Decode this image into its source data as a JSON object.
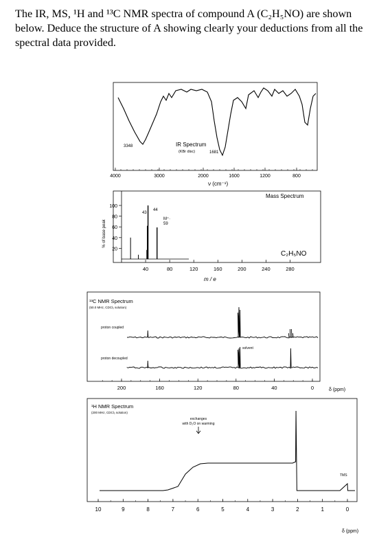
{
  "question": {
    "line1": "The IR, MS, ¹H and ¹³C NMR spectra of compound A (C₂H₅NO) are shown",
    "line2": "below. Deduce the structure of A showing clearly your deductions from all the",
    "line3": "spectral data provided."
  },
  "ir": {
    "title": "IR Spectrum",
    "subtitle": "(KBr disc)",
    "peak_labels": [
      "3348",
      "1681"
    ],
    "x_ticks": [
      "4000",
      "3000",
      "2000",
      "1600",
      "1200",
      "800"
    ],
    "xlabel": "ν (cm⁻¹)"
  },
  "ms": {
    "title": "Mass Spectrum",
    "formula": "C₂H₅NO",
    "y_ticks": [
      "100",
      "80",
      "60",
      "40",
      "20"
    ],
    "ylabel": "% of base peak",
    "peak_labels": [
      "43",
      "44",
      "M⁺·",
      "59"
    ],
    "x_ticks": [
      "40",
      "80",
      "120",
      "160",
      "200",
      "240",
      "280"
    ],
    "xlabel": "m / e"
  },
  "c13": {
    "title": "¹³C NMR Spectrum",
    "subtitle": "(50.0 MHz, CDCl₃ solution)",
    "trace1_label": "proton coupled",
    "trace2_label": "proton decoupled",
    "solvent_label": "solvent",
    "x_ticks": [
      "200",
      "160",
      "120",
      "80",
      "40",
      "0"
    ],
    "xunit": "δ (ppm)"
  },
  "h1": {
    "title": "¹H NMR Spectrum",
    "subtitle": "(200 MHz, CDCl₃ solution)",
    "annotation_line1": "exchanges",
    "annotation_line2": "with D₂O on warming",
    "tms_label": "TMS",
    "x_ticks": [
      "10",
      "9",
      "8",
      "7",
      "6",
      "5",
      "4",
      "3",
      "2",
      "1",
      "0"
    ],
    "xunit": "δ (ppm)"
  },
  "chart_data": [
    {
      "type": "line",
      "title": "IR Spectrum",
      "xlabel": "ν (cm⁻¹)",
      "x_range": [
        4000,
        600
      ],
      "annotated_peaks": [
        3348,
        1681
      ]
    },
    {
      "type": "bar",
      "title": "Mass Spectrum",
      "xlabel": "m / e",
      "ylabel": "% of base peak",
      "ylim": [
        0,
        100
      ],
      "x_range": [
        0,
        300
      ],
      "peaks": [
        {
          "mz": 15,
          "intensity": 40
        },
        {
          "mz": 28,
          "intensity": 8
        },
        {
          "mz": 42,
          "intensity": 17
        },
        {
          "mz": 43,
          "intensity": 62
        },
        {
          "mz": 44,
          "intensity": 100
        },
        {
          "mz": 59,
          "intensity": 59
        }
      ]
    },
    {
      "type": "line",
      "title": "¹³C NMR Spectrum",
      "x_range": [
        220,
        0
      ],
      "peaks_ppm": [
        172.5,
        77.0,
        22.7
      ]
    },
    {
      "type": "line",
      "title": "¹H NMR Spectrum",
      "x_range": [
        10,
        0
      ],
      "peaks_ppm": [
        6.2,
        2.05,
        0.0
      ]
    }
  ]
}
